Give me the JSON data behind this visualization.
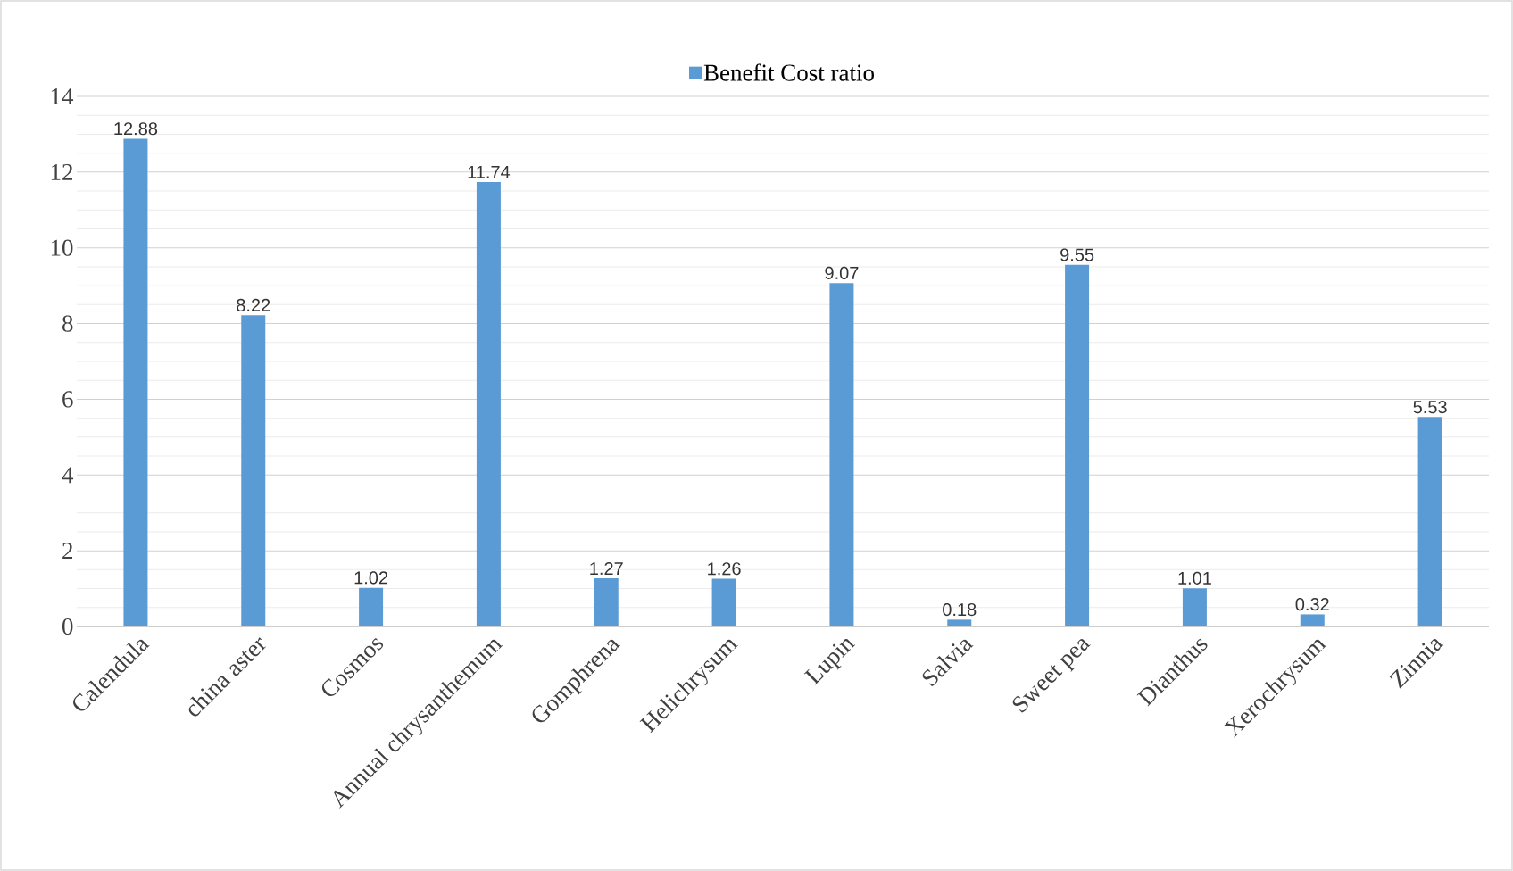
{
  "chart_data": {
    "type": "bar",
    "categories": [
      "Calendula",
      "china aster",
      "Cosmos",
      "Annual chrysanthemum",
      "Gomphrena",
      "Helichrysum",
      "Lupin",
      "Salvia",
      "Sweet pea",
      "Dianthus",
      "Xerochrysum",
      "Zinnia"
    ],
    "series": [
      {
        "name": "Benefit Cost ratio",
        "color": "#5b9bd5",
        "values": [
          12.88,
          8.22,
          1.02,
          11.74,
          1.27,
          1.26,
          9.07,
          0.18,
          9.55,
          1.01,
          0.32,
          5.53
        ]
      }
    ],
    "ylim": [
      0,
      14
    ],
    "yticks": [
      0,
      2,
      4,
      6,
      8,
      10,
      12,
      14
    ],
    "grid": "y",
    "legend": "top",
    "data_labels": true
  }
}
